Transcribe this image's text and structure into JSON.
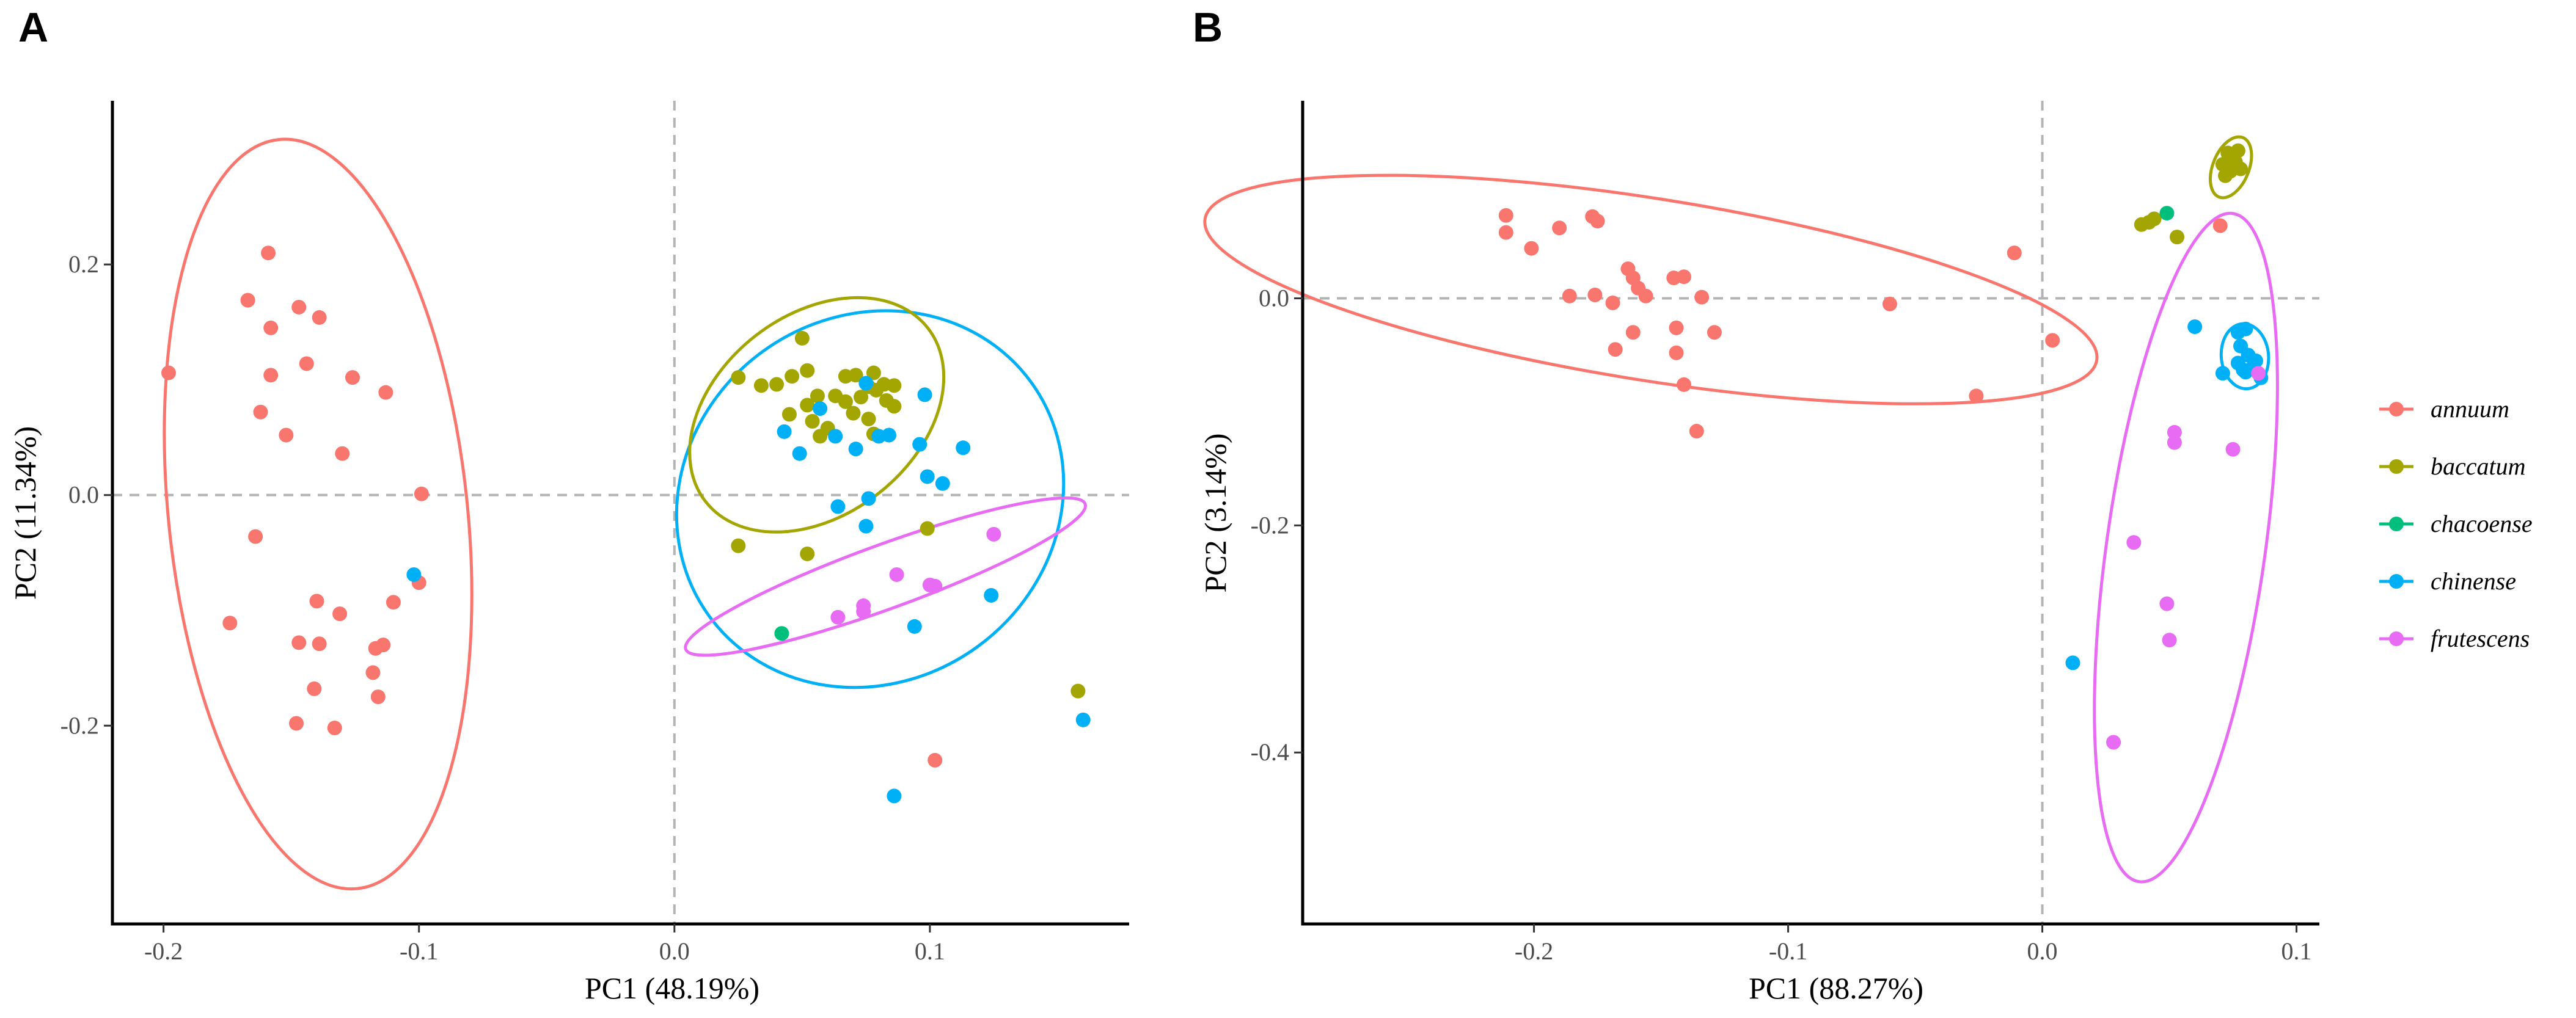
{
  "species": [
    {
      "name": "annuum",
      "color": "#F8766D"
    },
    {
      "name": "baccatum",
      "color": "#A3A500"
    },
    {
      "name": "chacoense",
      "color": "#00BF7D"
    },
    {
      "name": "chinense",
      "color": "#00B0F6"
    },
    {
      "name": "frutescens",
      "color": "#E76BF3"
    }
  ],
  "chart_data": [
    {
      "type": "scatter",
      "panel": "A",
      "xlabel": "PC1 (48.19%)",
      "ylabel": "PC2 (11.34%)",
      "xlim": [
        -0.22,
        0.178
      ],
      "ylim": [
        -0.372,
        0.342
      ],
      "xticks": [
        {
          "value": -0.2,
          "label": "-0.2"
        },
        {
          "value": -0.1,
          "label": "-0.1"
        },
        {
          "value": 0.0,
          "label": "0.0"
        },
        {
          "value": 0.1,
          "label": "0.1"
        }
      ],
      "yticks": [
        {
          "value": 0.2,
          "label": "0.2"
        },
        {
          "value": 0.0,
          "label": "0.0"
        },
        {
          "value": -0.2,
          "label": "-0.2"
        }
      ],
      "reference_lines": {
        "x": 0,
        "y": 0
      },
      "ellipses": [
        {
          "species": "annuum",
          "cx": -0.1395,
          "cy": -0.0165,
          "rx": 0.0585,
          "ry": 0.3266,
          "angle": -6
        },
        {
          "species": "chinense",
          "cx": 0.0766,
          "cy": -0.0035,
          "rx": 0.0779,
          "ry": 0.1583,
          "angle": -36
        },
        {
          "species": "baccatum",
          "cx": 0.0557,
          "cy": 0.0696,
          "rx": 0.0552,
          "ry": 0.0867,
          "angle": -38
        },
        {
          "species": "frutescens",
          "cx": 0.0826,
          "cy": -0.0707,
          "rx": 0.0832,
          "ry": 0.0278,
          "angle": -20
        }
      ],
      "series": [
        {
          "species": "annuum",
          "points": [
            [
              -0.198,
              0.106
            ],
            [
              -0.159,
              0.21
            ],
            [
              -0.167,
              0.169
            ],
            [
              -0.147,
              0.163
            ],
            [
              -0.139,
              0.154
            ],
            [
              -0.158,
              0.145
            ],
            [
              -0.144,
              0.114
            ],
            [
              -0.158,
              0.104
            ],
            [
              -0.126,
              0.102
            ],
            [
              -0.113,
              0.089
            ],
            [
              -0.162,
              0.072
            ],
            [
              -0.152,
              0.052
            ],
            [
              -0.13,
              0.036
            ],
            [
              -0.099,
              0.001
            ],
            [
              -0.164,
              -0.036
            ],
            [
              -0.1,
              -0.076
            ],
            [
              -0.14,
              -0.092
            ],
            [
              -0.11,
              -0.093
            ],
            [
              -0.131,
              -0.103
            ],
            [
              -0.174,
              -0.111
            ],
            [
              -0.147,
              -0.128
            ],
            [
              -0.139,
              -0.129
            ],
            [
              -0.114,
              -0.13
            ],
            [
              -0.117,
              -0.133
            ],
            [
              -0.141,
              -0.168
            ],
            [
              -0.118,
              -0.154
            ],
            [
              -0.116,
              -0.175
            ],
            [
              -0.148,
              -0.198
            ],
            [
              -0.133,
              -0.202
            ]
          ]
        },
        {
          "species": "baccatum",
          "points": [
            [
              0.05,
              0.136
            ],
            [
              0.025,
              0.102
            ],
            [
              0.034,
              0.095
            ],
            [
              0.04,
              0.096
            ],
            [
              0.046,
              0.103
            ],
            [
              0.052,
              0.108
            ],
            [
              0.071,
              0.104
            ],
            [
              0.067,
              0.103
            ],
            [
              0.078,
              0.106
            ],
            [
              0.082,
              0.096
            ],
            [
              0.076,
              0.094
            ],
            [
              0.079,
              0.091
            ],
            [
              0.086,
              0.095
            ],
            [
              0.056,
              0.086
            ],
            [
              0.063,
              0.086
            ],
            [
              0.045,
              0.07
            ],
            [
              0.052,
              0.078
            ],
            [
              0.067,
              0.081
            ],
            [
              0.073,
              0.085
            ],
            [
              0.083,
              0.082
            ],
            [
              0.086,
              0.077
            ],
            [
              0.054,
              0.064
            ],
            [
              0.06,
              0.058
            ],
            [
              0.07,
              0.071
            ],
            [
              0.076,
              0.066
            ],
            [
              0.057,
              0.051
            ],
            [
              0.078,
              0.053
            ],
            [
              0.025,
              -0.044
            ],
            [
              0.052,
              -0.051
            ],
            [
              0.099,
              -0.029
            ],
            [
              0.158,
              -0.17
            ]
          ]
        },
        {
          "species": "chacoense",
          "points": [
            [
              0.042,
              -0.12
            ]
          ]
        },
        {
          "species": "chinense",
          "points": [
            [
              0.075,
              0.097
            ],
            [
              0.098,
              0.087
            ],
            [
              0.043,
              0.055
            ],
            [
              0.057,
              0.075
            ],
            [
              0.049,
              0.036
            ],
            [
              0.08,
              0.051
            ],
            [
              0.084,
              0.052
            ],
            [
              0.096,
              0.044
            ],
            [
              0.113,
              0.041
            ],
            [
              0.071,
              0.04
            ],
            [
              0.063,
              0.051
            ],
            [
              0.099,
              0.016
            ],
            [
              0.105,
              0.01
            ],
            [
              0.064,
              -0.01
            ],
            [
              0.076,
              -0.003
            ],
            [
              0.075,
              -0.027
            ],
            [
              0.124,
              -0.087
            ],
            [
              0.094,
              -0.114
            ],
            [
              0.086,
              -0.261
            ],
            [
              0.16,
              -0.195
            ],
            [
              -0.102,
              -0.069
            ]
          ]
        },
        {
          "species": "frutescens",
          "points": [
            [
              0.125,
              -0.034
            ],
            [
              0.087,
              -0.069
            ],
            [
              0.1,
              -0.078
            ],
            [
              0.102,
              -0.079
            ],
            [
              0.074,
              -0.096
            ],
            [
              0.074,
              -0.101
            ],
            [
              0.064,
              -0.106
            ]
          ]
        },
        {
          "species": "annuum",
          "points": [
            [
              0.102,
              -0.23
            ]
          ]
        }
      ]
    },
    {
      "type": "scatter",
      "panel": "B",
      "xlabel": "PC1 (88.27%)",
      "ylabel": "PC2 (3.14%)",
      "xlim": [
        -0.291,
        0.109
      ],
      "ylim": [
        -0.551,
        0.174
      ],
      "xticks": [
        {
          "value": -0.2,
          "label": "-0.2"
        },
        {
          "value": -0.1,
          "label": "-0.1"
        },
        {
          "value": 0.0,
          "label": "0.0"
        },
        {
          "value": 0.1,
          "label": "0.1"
        }
      ],
      "yticks": [
        {
          "value": 0.0,
          "label": "0.0"
        },
        {
          "value": -0.2,
          "label": "-0.2"
        },
        {
          "value": -0.4,
          "label": "-0.4"
        }
      ],
      "reference_lines": {
        "x": 0,
        "y": 0
      },
      "ellipses": [
        {
          "species": "annuum",
          "cx": -0.154,
          "cy": 0.0077,
          "rx": 0.1776,
          "ry": 0.0801,
          "angle": 9
        },
        {
          "species": "frutescens",
          "cx": 0.0565,
          "cy": -0.2195,
          "rx": 0.0312,
          "ry": 0.2971,
          "angle": 8
        },
        {
          "species": "chinense",
          "cx": 0.0797,
          "cy": -0.051,
          "rx": 0.0093,
          "ry": 0.0287,
          "angle": -5
        },
        {
          "species": "baccatum",
          "cx": 0.0742,
          "cy": 0.1154,
          "rx": 0.0071,
          "ry": 0.0282,
          "angle": 22
        }
      ],
      "series": [
        {
          "species": "annuum",
          "points": [
            [
              -0.211,
              0.073
            ],
            [
              -0.211,
              0.058
            ],
            [
              -0.201,
              0.044
            ],
            [
              -0.19,
              0.062
            ],
            [
              -0.177,
              0.072
            ],
            [
              -0.175,
              0.068
            ],
            [
              -0.163,
              0.026
            ],
            [
              -0.161,
              0.018
            ],
            [
              -0.159,
              0.009
            ],
            [
              -0.145,
              0.018
            ],
            [
              -0.141,
              0.019
            ],
            [
              -0.156,
              0.002
            ],
            [
              -0.134,
              0.001
            ],
            [
              -0.186,
              0.002
            ],
            [
              -0.176,
              0.003
            ],
            [
              -0.169,
              -0.004
            ],
            [
              -0.161,
              -0.03
            ],
            [
              -0.144,
              -0.026
            ],
            [
              -0.129,
              -0.03
            ],
            [
              -0.168,
              -0.045
            ],
            [
              -0.144,
              -0.048
            ],
            [
              -0.141,
              -0.076
            ],
            [
              -0.136,
              -0.117
            ],
            [
              -0.06,
              -0.005
            ],
            [
              -0.011,
              0.04
            ],
            [
              -0.026,
              -0.086
            ],
            [
              0.004,
              -0.037
            ],
            [
              0.07,
              0.064
            ]
          ]
        },
        {
          "species": "baccatum",
          "points": [
            [
              0.071,
              0.118
            ],
            [
              0.073,
              0.128
            ],
            [
              0.075,
              0.125
            ],
            [
              0.077,
              0.13
            ],
            [
              0.074,
              0.112
            ],
            [
              0.078,
              0.114
            ],
            [
              0.072,
              0.108
            ],
            [
              0.076,
              0.12
            ],
            [
              0.039,
              0.065
            ],
            [
              0.042,
              0.067
            ],
            [
              0.044,
              0.07
            ],
            [
              0.053,
              0.054
            ]
          ]
        },
        {
          "species": "chacoense",
          "points": [
            [
              0.049,
              0.075
            ]
          ]
        },
        {
          "species": "chinense",
          "points": [
            [
              0.06,
              -0.025
            ],
            [
              0.077,
              -0.03
            ],
            [
              0.08,
              -0.027
            ],
            [
              0.078,
              -0.042
            ],
            [
              0.081,
              -0.05
            ],
            [
              0.077,
              -0.057
            ],
            [
              0.083,
              -0.06
            ],
            [
              0.08,
              -0.065
            ],
            [
              0.086,
              -0.07
            ],
            [
              0.079,
              -0.063
            ],
            [
              0.071,
              -0.066
            ],
            [
              0.084,
              -0.055
            ],
            [
              0.012,
              -0.321
            ]
          ]
        },
        {
          "species": "frutescens",
          "points": [
            [
              0.052,
              -0.118
            ],
            [
              0.052,
              -0.127
            ],
            [
              0.075,
              -0.133
            ],
            [
              0.036,
              -0.215
            ],
            [
              0.049,
              -0.269
            ],
            [
              0.05,
              -0.301
            ],
            [
              0.028,
              -0.391
            ],
            [
              0.085,
              -0.066
            ]
          ]
        }
      ]
    }
  ]
}
